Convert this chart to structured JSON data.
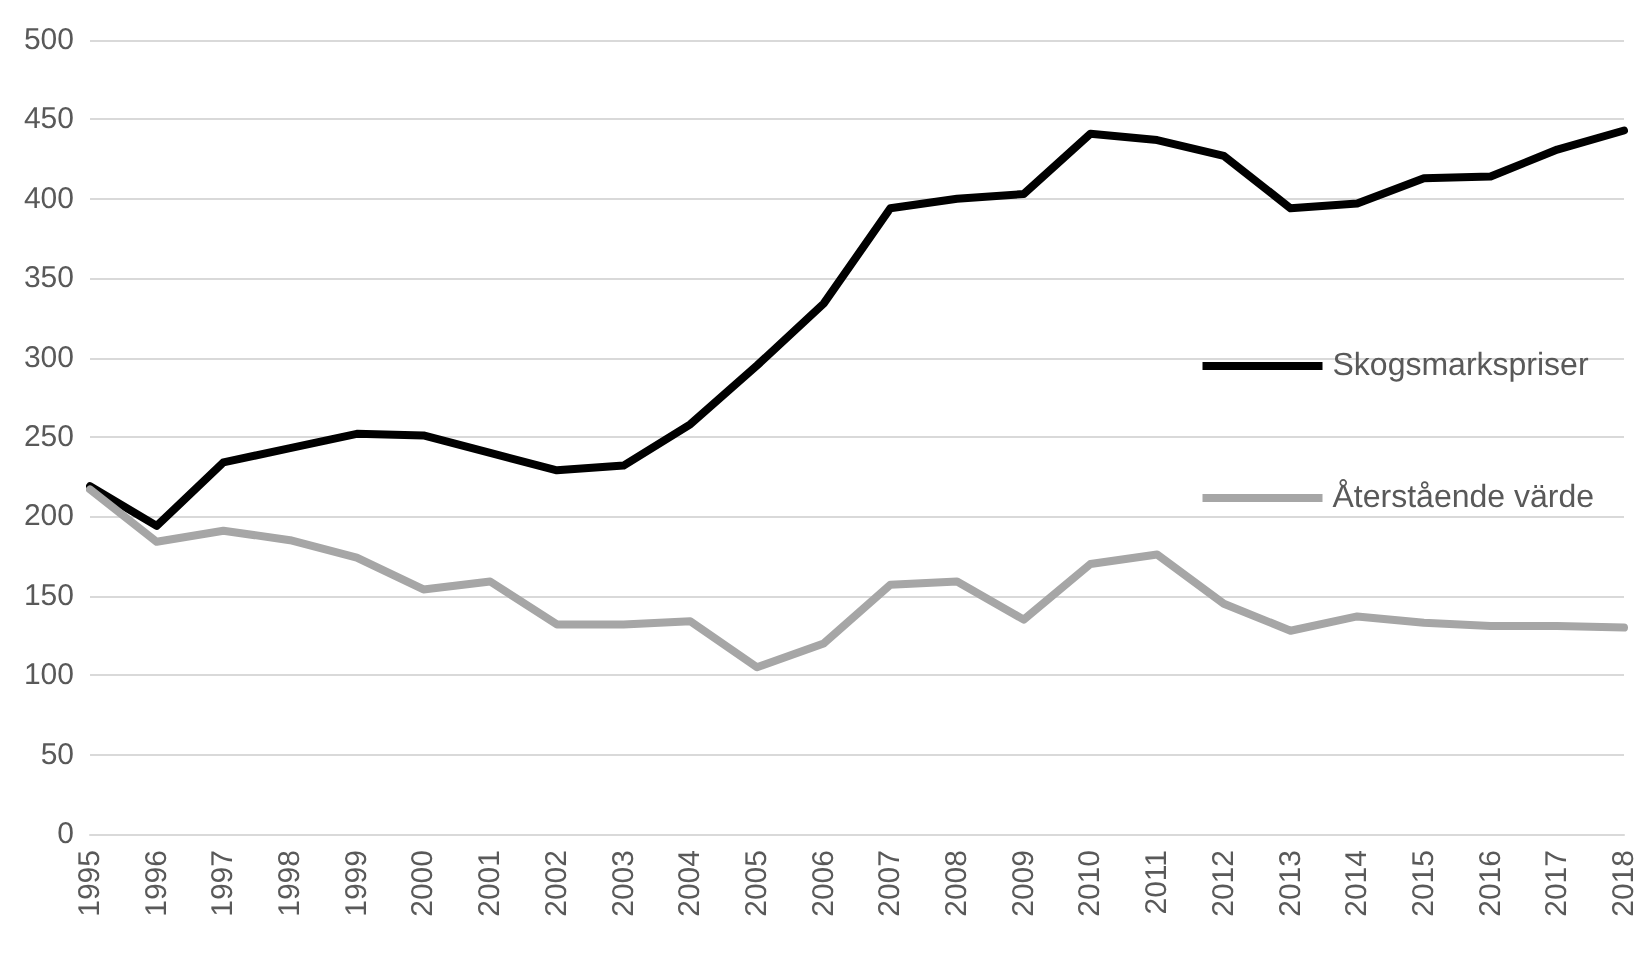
{
  "chart_data": {
    "type": "line",
    "categories": [
      "1995",
      "1996",
      "1997",
      "1998",
      "1999",
      "2000",
      "2001",
      "2002",
      "2003",
      "2004",
      "2005",
      "2006",
      "2007",
      "2008",
      "2009",
      "2010",
      "2011",
      "2012",
      "2013",
      "2014",
      "2015",
      "2016",
      "2017",
      "2018"
    ],
    "series": [
      {
        "name": "Skogsmarkspriser",
        "color": "#000000",
        "values": [
          219,
          194,
          234,
          243,
          252,
          251,
          240,
          229,
          232,
          258,
          295,
          334,
          394,
          400,
          403,
          441,
          437,
          427,
          394,
          397,
          413,
          414,
          431,
          443
        ]
      },
      {
        "name": "Återstående värde",
        "color": "#a6a6a6",
        "values": [
          217,
          184,
          191,
          185,
          174,
          154,
          159,
          132,
          132,
          134,
          105,
          120,
          157,
          159,
          135,
          170,
          176,
          145,
          128,
          137,
          133,
          131,
          131,
          130
        ]
      }
    ],
    "ylim": [
      0,
      500
    ],
    "yticks": [
      0,
      50,
      100,
      150,
      200,
      250,
      300,
      350,
      400,
      450,
      500
    ],
    "grid": "y",
    "legend": "right",
    "marker": "none",
    "line_style": "solid"
  }
}
